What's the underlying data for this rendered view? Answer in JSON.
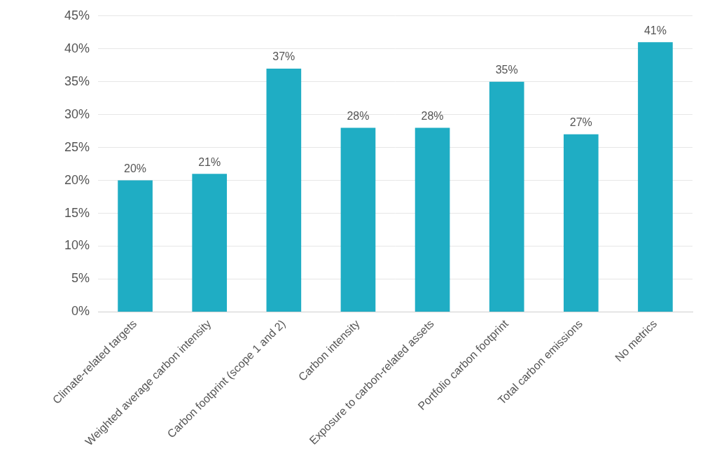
{
  "chart_data": {
    "type": "bar",
    "categories": [
      "Climate-related targets",
      "Weighted average carbon intensity",
      "Carbon footprint (scope 1 and 2)",
      "Carbon intensity",
      "Exposure to carbon-related assets",
      "Portfolio carbon footprint",
      "Total carbon emissions",
      "No metrics"
    ],
    "values": [
      20,
      21,
      37,
      28,
      28,
      35,
      27,
      41
    ],
    "value_labels": [
      "20%",
      "21%",
      "37%",
      "28%",
      "28%",
      "35%",
      "27%",
      "41%"
    ],
    "data_labels": true,
    "color": "#1fadc4",
    "ylim": [
      0,
      45
    ],
    "yticks": [
      {
        "value": 0,
        "label": "0%"
      },
      {
        "value": 5,
        "label": "5%"
      },
      {
        "value": 10,
        "label": "10%"
      },
      {
        "value": 15,
        "label": "15%"
      },
      {
        "value": 20,
        "label": "20%"
      },
      {
        "value": 25,
        "label": "25%"
      },
      {
        "value": 30,
        "label": "30%"
      },
      {
        "value": 35,
        "label": "35%"
      },
      {
        "value": 40,
        "label": "40%"
      },
      {
        "value": 45,
        "label": "45%"
      }
    ],
    "grid": true
  }
}
